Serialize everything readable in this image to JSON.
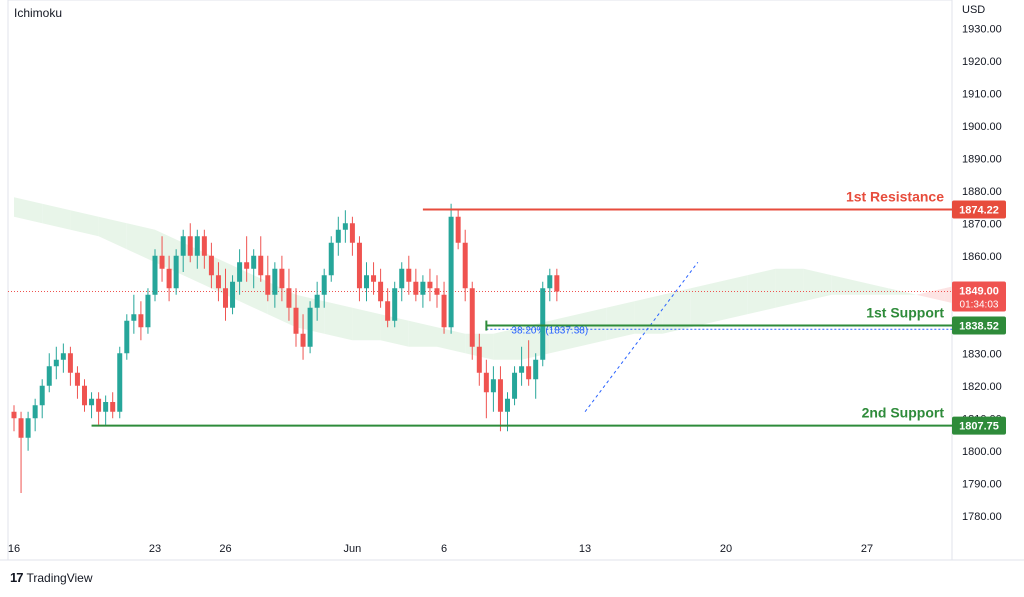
{
  "header": {
    "indicator": "Ichimoku",
    "currency": "USD"
  },
  "footer": {
    "brand": "TradingView",
    "logo_icon": "tradingview-logo-icon"
  },
  "colors": {
    "bull": "#26a69a",
    "bear": "#ef5350",
    "resistance": "#e74c3c",
    "support": "#2e8b3a",
    "cloud_bull": "#e8f5e9",
    "cloud_bear": "#fde3e3",
    "price_line": "#ef5350",
    "fib": "#2962ff"
  },
  "chart_data": {
    "type": "candlestick",
    "instrument_note": "",
    "y_range": [
      1775,
      1935
    ],
    "y_ticks": [
      "1930.00",
      "1920.00",
      "1910.00",
      "1900.00",
      "1890.00",
      "1880.00",
      "1870.00",
      "1860.00",
      "1850.00",
      "1840.00",
      "1830.00",
      "1820.00",
      "1810.00",
      "1800.00",
      "1790.00",
      "1780.00"
    ],
    "x_ticks": [
      {
        "label": "16",
        "index": 0
      },
      {
        "label": "23",
        "index": 20
      },
      {
        "label": "26",
        "index": 30
      },
      {
        "label": "Jun",
        "index": 48
      },
      {
        "label": "6",
        "index": 61
      },
      {
        "label": "13",
        "index": 81
      },
      {
        "label": "20",
        "index": 101
      },
      {
        "label": "27",
        "index": 121
      }
    ],
    "candles": [
      [
        1812,
        1814,
        1806,
        1810
      ],
      [
        1810,
        1812,
        1787,
        1804
      ],
      [
        1804,
        1812,
        1800,
        1810
      ],
      [
        1810,
        1816,
        1806,
        1814
      ],
      [
        1814,
        1822,
        1810,
        1820
      ],
      [
        1820,
        1830,
        1818,
        1826
      ],
      [
        1826,
        1832,
        1822,
        1828
      ],
      [
        1828,
        1833,
        1824,
        1830
      ],
      [
        1830,
        1832,
        1820,
        1824
      ],
      [
        1824,
        1826,
        1816,
        1820
      ],
      [
        1820,
        1822,
        1812,
        1814
      ],
      [
        1814,
        1818,
        1810,
        1816
      ],
      [
        1816,
        1818,
        1808,
        1812
      ],
      [
        1812,
        1817,
        1808,
        1815
      ],
      [
        1815,
        1818,
        1810,
        1812
      ],
      [
        1812,
        1832,
        1810,
        1830
      ],
      [
        1830,
        1842,
        1828,
        1840
      ],
      [
        1840,
        1848,
        1836,
        1842
      ],
      [
        1842,
        1846,
        1834,
        1838
      ],
      [
        1838,
        1850,
        1836,
        1848
      ],
      [
        1848,
        1862,
        1846,
        1860
      ],
      [
        1860,
        1866,
        1852,
        1856
      ],
      [
        1856,
        1860,
        1846,
        1850
      ],
      [
        1850,
        1862,
        1848,
        1860
      ],
      [
        1860,
        1868,
        1855,
        1866
      ],
      [
        1866,
        1870,
        1858,
        1860
      ],
      [
        1860,
        1868,
        1856,
        1866
      ],
      [
        1866,
        1868,
        1856,
        1860
      ],
      [
        1860,
        1864,
        1850,
        1854
      ],
      [
        1854,
        1858,
        1846,
        1850
      ],
      [
        1850,
        1856,
        1840,
        1844
      ],
      [
        1844,
        1854,
        1842,
        1852
      ],
      [
        1852,
        1862,
        1848,
        1858
      ],
      [
        1858,
        1866,
        1852,
        1856
      ],
      [
        1856,
        1862,
        1850,
        1860
      ],
      [
        1860,
        1866,
        1852,
        1854
      ],
      [
        1854,
        1860,
        1846,
        1848
      ],
      [
        1848,
        1858,
        1844,
        1856
      ],
      [
        1856,
        1860,
        1846,
        1850
      ],
      [
        1850,
        1856,
        1840,
        1844
      ],
      [
        1844,
        1850,
        1832,
        1836
      ],
      [
        1836,
        1842,
        1828,
        1832
      ],
      [
        1832,
        1846,
        1830,
        1844
      ],
      [
        1844,
        1852,
        1840,
        1848
      ],
      [
        1848,
        1856,
        1844,
        1854
      ],
      [
        1854,
        1866,
        1852,
        1864
      ],
      [
        1864,
        1872,
        1860,
        1868
      ],
      [
        1868,
        1874,
        1864,
        1870
      ],
      [
        1870,
        1872,
        1860,
        1864
      ],
      [
        1864,
        1866,
        1846,
        1850
      ],
      [
        1850,
        1858,
        1846,
        1854
      ],
      [
        1854,
        1858,
        1848,
        1852
      ],
      [
        1852,
        1856,
        1844,
        1846
      ],
      [
        1846,
        1850,
        1838,
        1840
      ],
      [
        1840,
        1852,
        1838,
        1850
      ],
      [
        1850,
        1858,
        1846,
        1856
      ],
      [
        1856,
        1860,
        1848,
        1852
      ],
      [
        1852,
        1856,
        1846,
        1848
      ],
      [
        1848,
        1854,
        1844,
        1852
      ],
      [
        1852,
        1856,
        1846,
        1850
      ],
      [
        1850,
        1854,
        1844,
        1848
      ],
      [
        1848,
        1852,
        1836,
        1838
      ],
      [
        1838,
        1876,
        1836,
        1872
      ],
      [
        1872,
        1874,
        1862,
        1864
      ],
      [
        1864,
        1868,
        1846,
        1850
      ],
      [
        1850,
        1852,
        1828,
        1832
      ],
      [
        1832,
        1836,
        1820,
        1824
      ],
      [
        1824,
        1828,
        1810,
        1818
      ],
      [
        1818,
        1826,
        1812,
        1822
      ],
      [
        1822,
        1826,
        1806,
        1812
      ],
      [
        1812,
        1818,
        1806,
        1816
      ],
      [
        1816,
        1826,
        1814,
        1824
      ],
      [
        1824,
        1832,
        1820,
        1826
      ],
      [
        1826,
        1834,
        1820,
        1822
      ],
      [
        1822,
        1830,
        1816,
        1828
      ],
      [
        1828,
        1852,
        1826,
        1850
      ],
      [
        1850,
        1856,
        1846,
        1854
      ],
      [
        1854,
        1856,
        1846,
        1849
      ]
    ],
    "ichimoku_cloud": [
      {
        "span_a": 1878,
        "span_b": 1872
      },
      {
        "span_a": 1876,
        "span_b": 1870
      },
      {
        "span_a": 1874,
        "span_b": 1868
      },
      {
        "span_a": 1872,
        "span_b": 1866
      },
      {
        "span_a": 1870,
        "span_b": 1862
      },
      {
        "span_a": 1868,
        "span_b": 1858
      },
      {
        "span_a": 1864,
        "span_b": 1854
      },
      {
        "span_a": 1860,
        "span_b": 1850
      },
      {
        "span_a": 1856,
        "span_b": 1846
      },
      {
        "span_a": 1852,
        "span_b": 1842
      },
      {
        "span_a": 1848,
        "span_b": 1838
      },
      {
        "span_a": 1846,
        "span_b": 1836
      },
      {
        "span_a": 1844,
        "span_b": 1834
      },
      {
        "span_a": 1842,
        "span_b": 1834
      },
      {
        "span_a": 1840,
        "span_b": 1832
      },
      {
        "span_a": 1838,
        "span_b": 1832
      },
      {
        "span_a": 1836,
        "span_b": 1830
      },
      {
        "span_a": 1836,
        "span_b": 1828
      },
      {
        "span_a": 1838,
        "span_b": 1828
      },
      {
        "span_a": 1840,
        "span_b": 1830
      },
      {
        "span_a": 1842,
        "span_b": 1832
      },
      {
        "span_a": 1844,
        "span_b": 1834
      },
      {
        "span_a": 1846,
        "span_b": 1836
      },
      {
        "span_a": 1848,
        "span_b": 1836
      },
      {
        "span_a": 1850,
        "span_b": 1838
      },
      {
        "span_a": 1852,
        "span_b": 1840
      },
      {
        "span_a": 1854,
        "span_b": 1842
      },
      {
        "span_a": 1856,
        "span_b": 1844
      },
      {
        "span_a": 1856,
        "span_b": 1846
      },
      {
        "span_a": 1854,
        "span_b": 1848
      },
      {
        "span_a": 1852,
        "span_b": 1848
      },
      {
        "span_a": 1850,
        "span_b": 1848
      },
      {
        "span_a": 1848,
        "span_b": 1848
      },
      {
        "span_a": 1846,
        "span_b": 1850
      },
      {
        "span_a": 1844,
        "span_b": 1852
      }
    ],
    "cloud_start_index": 0,
    "current_price": {
      "value": "1849.00",
      "countdown": "01:34:03"
    },
    "levels": [
      {
        "name": "1st Resistance",
        "value": "1874.22",
        "start_index": 58,
        "kind": "resistance"
      },
      {
        "name": "1st Support",
        "value": "1838.52",
        "start_index": 67,
        "kind": "support"
      },
      {
        "name": "2nd Support",
        "value": "1807.75",
        "start_index": 11,
        "kind": "support"
      }
    ],
    "fib_label": "38.20%(1837.38)",
    "fib_level": 1837.38
  }
}
